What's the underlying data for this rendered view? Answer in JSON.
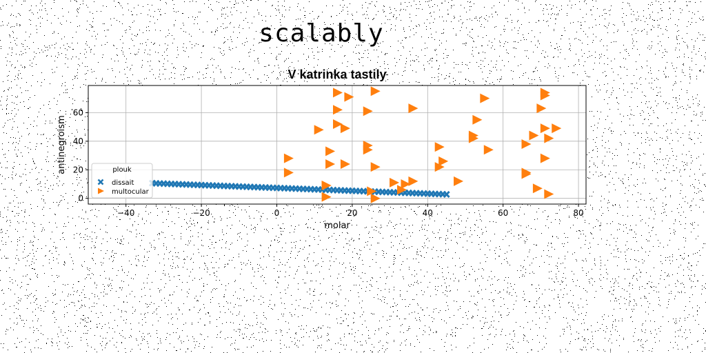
{
  "page": {
    "title": "scalably"
  },
  "chart_data": {
    "type": "scatter",
    "title": "V katrinka tastily",
    "xlabel": "molar",
    "ylabel": "antinegroism",
    "xlim": [
      -50,
      82
    ],
    "ylim": [
      -4,
      79
    ],
    "xticks": [
      -40,
      -20,
      0,
      20,
      40,
      60,
      80
    ],
    "yticks": [
      0,
      20,
      40,
      60
    ],
    "grid": true,
    "legend": {
      "title": "plouk",
      "placement": "lower-left"
    },
    "series": [
      {
        "name": "dissait",
        "marker": "x",
        "color": "#1f77b4",
        "x": [
          -33,
          -32,
          -31,
          -30,
          -29,
          -28,
          -27,
          -26,
          -25,
          -24,
          -23,
          -22,
          -21,
          -20,
          -19,
          -18,
          -17,
          -16,
          -15,
          -14,
          -13,
          -12,
          -11,
          -10,
          -9,
          -8,
          -7,
          -6,
          -5,
          -4,
          -3,
          -2,
          -1,
          0,
          1,
          2,
          3,
          4,
          5,
          6,
          7,
          8,
          9,
          10,
          11,
          12,
          13,
          14,
          15,
          16,
          17,
          18,
          19,
          20,
          21,
          22,
          23,
          24,
          25,
          26,
          27,
          28,
          29,
          30,
          31,
          32,
          33,
          34,
          35,
          36,
          37,
          38,
          39,
          40,
          41,
          42,
          43,
          44,
          45
        ],
        "y": [
          10.6,
          10.5,
          10.4,
          10.3,
          10.2,
          10.1,
          10.0,
          9.9,
          9.8,
          9.7,
          9.6,
          9.5,
          9.4,
          9.3,
          9.2,
          9.1,
          9.0,
          8.9,
          8.8,
          8.7,
          8.6,
          8.5,
          8.4,
          8.3,
          8.2,
          8.1,
          8.0,
          7.9,
          7.8,
          7.7,
          7.6,
          7.5,
          7.4,
          7.3,
          7.2,
          7.1,
          7.0,
          6.9,
          6.8,
          6.7,
          6.6,
          6.5,
          6.4,
          6.3,
          6.2,
          6.1,
          6.0,
          5.9,
          5.8,
          5.7,
          5.6,
          5.5,
          5.4,
          5.3,
          5.2,
          5.1,
          5.0,
          4.9,
          4.8,
          4.7,
          4.6,
          4.5,
          4.4,
          4.3,
          4.2,
          4.1,
          4.0,
          3.9,
          3.8,
          3.7,
          3.6,
          3.5,
          3.4,
          3.3,
          3.2,
          3.1,
          3.0,
          2.9,
          2.8
        ]
      },
      {
        "name": "multocular",
        "marker": "triangle-right",
        "color": "#ff7f0e",
        "x": [
          16,
          26,
          19,
          16,
          24,
          36,
          11,
          16,
          18,
          24,
          14,
          24,
          43,
          44,
          3,
          14,
          18,
          26,
          43,
          3,
          13,
          31,
          34,
          36,
          13,
          25,
          33,
          13,
          26,
          48,
          52,
          53,
          52,
          55,
          56,
          66,
          71,
          71,
          70,
          71,
          68,
          72,
          74,
          66,
          66,
          71,
          69,
          72
        ],
        "y": [
          74,
          75,
          71,
          62,
          61,
          63,
          48,
          52,
          49,
          34,
          33,
          37,
          36,
          26,
          28,
          24,
          24,
          22,
          22,
          18,
          9,
          11,
          10,
          12,
          1,
          5,
          6,
          9,
          0,
          12,
          44,
          55,
          42,
          70,
          34,
          38,
          74,
          72,
          63,
          49,
          44,
          42,
          49,
          18,
          17,
          28,
          7,
          3
        ]
      }
    ]
  }
}
